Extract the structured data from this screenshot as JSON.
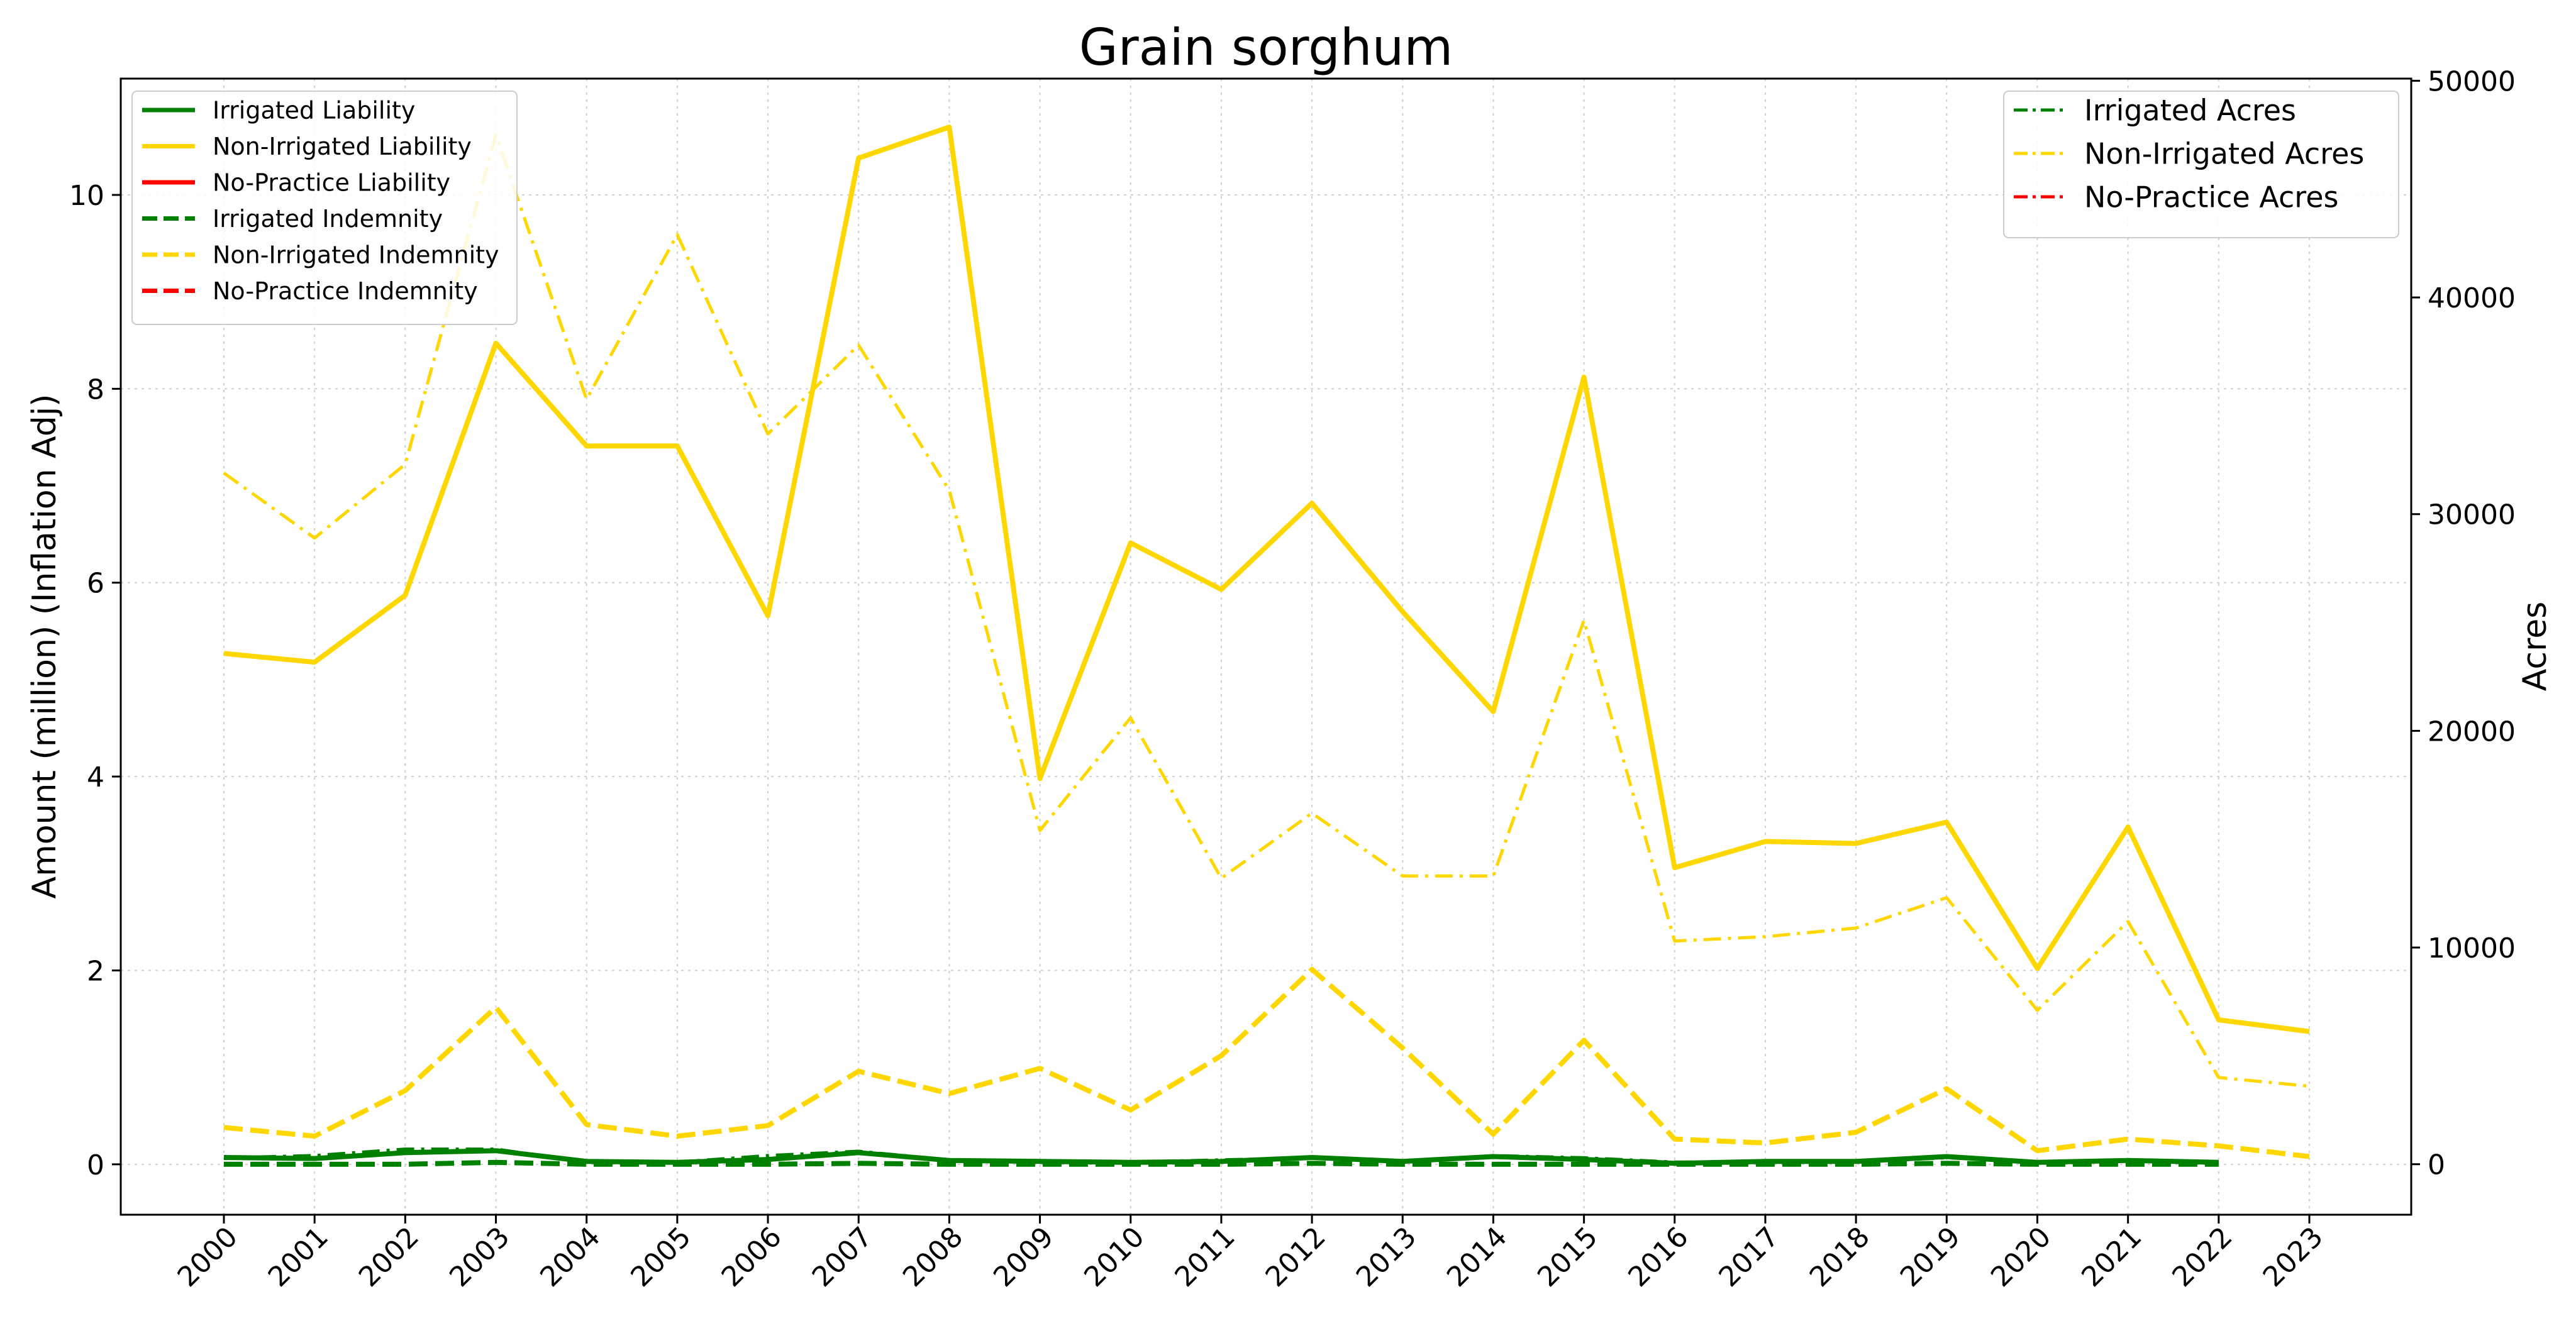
{
  "chart_data": {
    "type": "line",
    "title": "Grain sorghum",
    "xlabel": "",
    "ylabel_left": "Amount (million) (Inflation Adj)",
    "ylabel_right": "Acres",
    "categories": [
      "2000",
      "2001",
      "2002",
      "2003",
      "2004",
      "2005",
      "2006",
      "2007",
      "2008",
      "2009",
      "2010",
      "2011",
      "2012",
      "2013",
      "2014",
      "2015",
      "2016",
      "2017",
      "2018",
      "2019",
      "2020",
      "2021",
      "2022",
      "2023"
    ],
    "ylim_left": [
      -0.52,
      11.2
    ],
    "ylim_right": [
      -2330,
      50100
    ],
    "yticks_left": [
      0,
      2,
      4,
      6,
      8,
      10
    ],
    "yticks_right": [
      0,
      10000,
      20000,
      30000,
      40000,
      50000
    ],
    "grid": true,
    "series_left": [
      {
        "name": "Irrigated Liability",
        "color": "#008000",
        "style": "solid",
        "values": [
          0.07,
          0.06,
          0.12,
          0.14,
          0.03,
          0.02,
          0.05,
          0.12,
          0.04,
          0.03,
          0.02,
          0.03,
          0.07,
          0.03,
          0.08,
          0.05,
          0.01,
          0.03,
          0.03,
          0.08,
          0.02,
          0.04,
          0.02,
          null
        ]
      },
      {
        "name": "Non-Irrigated Liability",
        "color": "#FFD700",
        "style": "solid",
        "values": [
          5.27,
          5.18,
          5.87,
          8.47,
          7.41,
          7.41,
          5.66,
          10.38,
          10.7,
          3.98,
          6.41,
          5.93,
          6.82,
          5.7,
          4.67,
          8.12,
          3.06,
          3.33,
          3.31,
          3.53,
          2.02,
          3.48,
          1.49,
          1.37
        ]
      },
      {
        "name": "No-Practice Liability",
        "color": "#FF0000",
        "style": "solid",
        "values": []
      },
      {
        "name": "Irrigated Indemnity",
        "color": "#008000",
        "style": "dashed",
        "values": [
          0.0,
          0.0,
          0.0,
          0.02,
          0.0,
          0.0,
          0.0,
          0.01,
          0.0,
          0.0,
          0.0,
          0.0,
          0.01,
          0.0,
          0.0,
          0.0,
          0.0,
          0.0,
          0.0,
          0.01,
          0.0,
          0.0,
          0.0,
          null
        ]
      },
      {
        "name": "Non-Irrigated Indemnity",
        "color": "#FFD700",
        "style": "dashed",
        "values": [
          0.38,
          0.29,
          0.76,
          1.62,
          0.41,
          0.29,
          0.4,
          0.96,
          0.73,
          0.99,
          0.56,
          1.12,
          2.01,
          1.2,
          0.31,
          1.28,
          0.26,
          0.22,
          0.33,
          0.78,
          0.14,
          0.26,
          0.19,
          0.08
        ]
      },
      {
        "name": "No-Practice Indemnity",
        "color": "#FF0000",
        "style": "dashed",
        "values": []
      }
    ],
    "series_right": [
      {
        "name": "Irrigated Acres",
        "color": "#008000",
        "style": "dashdot",
        "values": [
          300,
          400,
          700,
          700,
          100,
          100,
          400,
          600,
          200,
          100,
          100,
          200,
          300,
          100,
          400,
          300,
          100,
          100,
          100,
          300,
          100,
          200,
          50,
          null
        ]
      },
      {
        "name": "Non-Irrigated Acres",
        "color": "#FFD700",
        "style": "dashdot",
        "values": [
          31900,
          28900,
          32300,
          47500,
          35300,
          42900,
          33700,
          37800,
          31100,
          15400,
          20600,
          13200,
          16200,
          13300,
          13300,
          25100,
          10300,
          10500,
          10900,
          12300,
          7100,
          11200,
          4000,
          3600
        ]
      },
      {
        "name": "No-Practice Acres",
        "color": "#FF0000",
        "style": "dashdot",
        "values": []
      }
    ],
    "legend_left": "top-left",
    "legend_right": "top-right"
  }
}
